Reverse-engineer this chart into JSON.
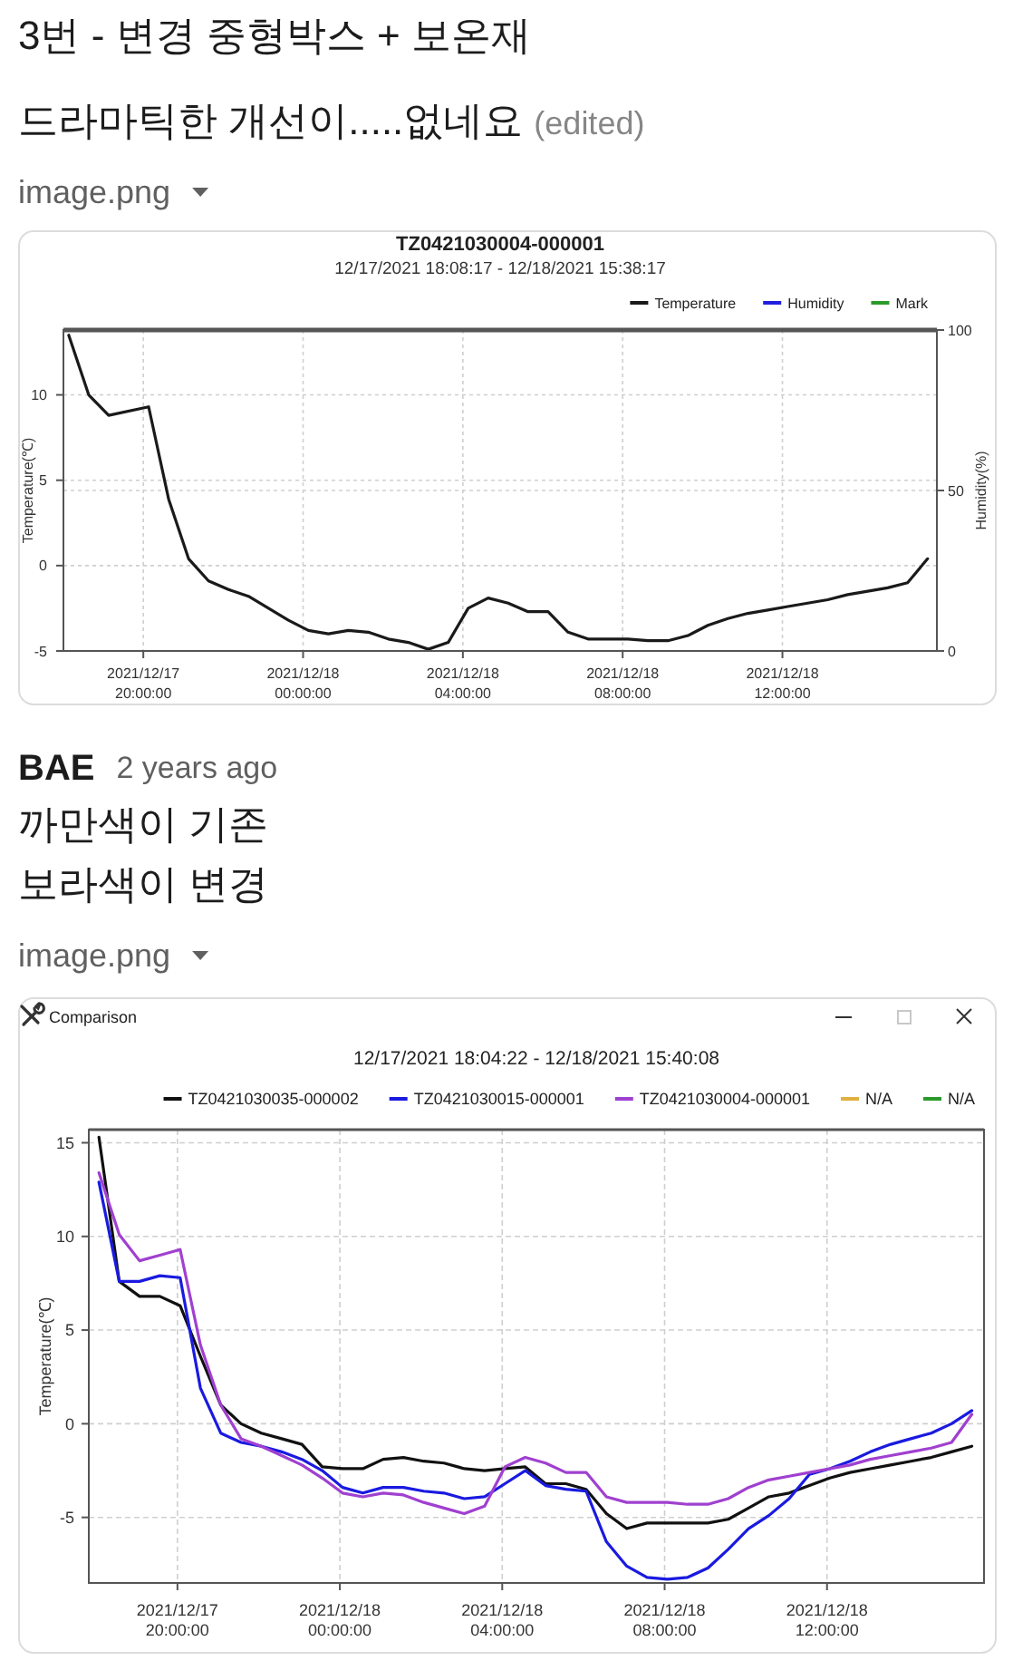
{
  "chart_data": [
    {
      "type": "line",
      "title": "TZ0421030004-000001",
      "subtitle": "12/17/2021 18:08:17 - 12/18/2021 15:38:17",
      "ylabel": "Temperature(℃)",
      "y2label": "Humidity(%)",
      "annotations": [
        "3번 - 변경 중형박스 + 보온재",
        "드라마틱한 개선이.....없네요",
        "(edited)",
        "image.png"
      ],
      "x": [
        "2021-12-17T18:08",
        "2021-12-17T18:38",
        "2021-12-17T19:08",
        "2021-12-17T20:08",
        "2021-12-17T20:38",
        "2021-12-17T21:08",
        "2021-12-17T21:38",
        "2021-12-17T22:08",
        "2021-12-17T22:38",
        "2021-12-17T23:08",
        "2021-12-17T23:38",
        "2021-12-18T00:08",
        "2021-12-18T00:38",
        "2021-12-18T01:08",
        "2021-12-18T01:38",
        "2021-12-18T02:08",
        "2021-12-18T02:38",
        "2021-12-18T03:08",
        "2021-12-18T03:38",
        "2021-12-18T04:08",
        "2021-12-18T04:38",
        "2021-12-18T05:08",
        "2021-12-18T05:38",
        "2021-12-18T06:08",
        "2021-12-18T06:38",
        "2021-12-18T07:08",
        "2021-12-18T07:38",
        "2021-12-18T08:08",
        "2021-12-18T08:38",
        "2021-12-18T09:08",
        "2021-12-18T09:38",
        "2021-12-18T10:08",
        "2021-12-18T10:38",
        "2021-12-18T11:08",
        "2021-12-18T11:38",
        "2021-12-18T12:08",
        "2021-12-18T12:38",
        "2021-12-18T13:08",
        "2021-12-18T13:38",
        "2021-12-18T14:08",
        "2021-12-18T14:38",
        "2021-12-18T15:08",
        "2021-12-18T15:38"
      ],
      "series": [
        {
          "name": "Temperature",
          "color": "#1a1a1a",
          "values": [
            13.5,
            10.0,
            8.8,
            9.3,
            3.9,
            0.4,
            -0.9,
            -1.4,
            -1.8,
            -2.5,
            -3.2,
            -3.8,
            -4.0,
            -3.8,
            -3.9,
            -4.3,
            -4.5,
            -4.9,
            -4.5,
            -2.5,
            -1.9,
            -2.2,
            -2.7,
            -2.7,
            -3.9,
            -4.3,
            -4.3,
            -4.3,
            -4.4,
            -4.4,
            -4.1,
            -3.5,
            -3.1,
            -2.8,
            -2.6,
            -2.4,
            -2.2,
            -2.0,
            -1.7,
            -1.5,
            -1.3,
            -1.0,
            0.4
          ]
        },
        {
          "name": "Humidity",
          "color": "#1f1fe0",
          "values": [
            null,
            null,
            null,
            null,
            null,
            null,
            null,
            null,
            null,
            null,
            null,
            null,
            null,
            null,
            null,
            null,
            null,
            null,
            null,
            null,
            null,
            null,
            null,
            null,
            null,
            null,
            null,
            null,
            null,
            null,
            null,
            null,
            null,
            null,
            null,
            null,
            null,
            null,
            null,
            null,
            null,
            null,
            null
          ]
        },
        {
          "name": "Mark",
          "color": "#2a9a2a",
          "values": [
            null,
            null,
            null,
            null,
            null,
            null,
            null,
            null,
            null,
            null,
            null,
            null,
            null,
            null,
            null,
            null,
            null,
            null,
            null,
            null,
            null,
            null,
            null,
            null,
            null,
            null,
            null,
            null,
            null,
            null,
            null,
            null,
            null,
            null,
            null,
            null,
            null,
            null,
            null,
            null,
            null,
            null,
            null
          ]
        }
      ],
      "xlim": [
        "2021-12-17T18:00",
        "2021-12-18T15:52"
      ],
      "xticks": [
        {
          "value": "2021-12-17T20:00",
          "label": "2021/12/17 20:00:00"
        },
        {
          "value": "2021-12-18T00:00",
          "label": "2021/12/18 00:00:00"
        },
        {
          "value": "2021-12-18T04:00",
          "label": "2021/12/18 04:00:00"
        },
        {
          "value": "2021-12-18T08:00",
          "label": "2021/12/18 08:00:00"
        },
        {
          "value": "2021-12-18T12:00",
          "label": "2021/12/18 12:00:00"
        }
      ],
      "ylim": [
        -5,
        13.8
      ],
      "yticks": [
        -5,
        0,
        5,
        10
      ],
      "y2lim": [
        0,
        100
      ],
      "y2ticks": [
        0,
        50,
        100
      ],
      "grid": true,
      "legend": "top right"
    },
    {
      "type": "line",
      "title": "12/17/2021 18:04:22 - 12/18/2021 15:40:08",
      "ylabel": "Temperature(℃)",
      "annotations": [
        "BAE",
        "2 years ago",
        "까만색이 기존",
        "보라색이 변경",
        "image.png",
        "Comparison"
      ],
      "x": [
        "2021-12-17T18:04",
        "2021-12-17T18:34",
        "2021-12-17T19:04",
        "2021-12-17T19:34",
        "2021-12-17T20:04",
        "2021-12-17T20:34",
        "2021-12-17T21:04",
        "2021-12-17T21:34",
        "2021-12-17T22:04",
        "2021-12-17T22:34",
        "2021-12-17T23:04",
        "2021-12-17T23:34",
        "2021-12-18T00:04",
        "2021-12-18T00:34",
        "2021-12-18T01:04",
        "2021-12-18T01:34",
        "2021-12-18T02:04",
        "2021-12-18T02:34",
        "2021-12-18T03:04",
        "2021-12-18T03:34",
        "2021-12-18T04:04",
        "2021-12-18T04:34",
        "2021-12-18T05:04",
        "2021-12-18T05:34",
        "2021-12-18T06:04",
        "2021-12-18T06:34",
        "2021-12-18T07:04",
        "2021-12-18T07:34",
        "2021-12-18T08:04",
        "2021-12-18T08:34",
        "2021-12-18T09:04",
        "2021-12-18T09:34",
        "2021-12-18T10:04",
        "2021-12-18T10:34",
        "2021-12-18T11:04",
        "2021-12-18T11:34",
        "2021-12-18T12:04",
        "2021-12-18T12:34",
        "2021-12-18T13:04",
        "2021-12-18T13:34",
        "2021-12-18T14:04",
        "2021-12-18T14:34",
        "2021-12-18T15:04",
        "2021-12-18T15:34"
      ],
      "series": [
        {
          "name": "TZ0421030035-000002",
          "color": "#111111",
          "values": [
            15.3,
            7.6,
            6.8,
            6.8,
            6.3,
            3.6,
            1.0,
            0.0,
            -0.5,
            -0.8,
            -1.1,
            -2.3,
            -2.4,
            -2.4,
            -1.9,
            -1.8,
            -2.0,
            -2.1,
            -2.4,
            -2.5,
            -2.4,
            -2.3,
            -3.2,
            -3.2,
            -3.5,
            -4.8,
            -5.6,
            -5.3,
            -5.3,
            -5.3,
            -5.3,
            -5.1,
            -4.5,
            -3.9,
            -3.7,
            -3.3,
            -2.9,
            -2.6,
            -2.4,
            -2.2,
            -2.0,
            -1.8,
            -1.5,
            -1.2
          ]
        },
        {
          "name": "TZ0421030015-000001",
          "color": "#1a1ae0",
          "values": [
            12.9,
            7.6,
            7.6,
            7.9,
            7.8,
            1.9,
            -0.5,
            -1.0,
            -1.2,
            -1.5,
            -1.9,
            -2.5,
            -3.4,
            -3.7,
            -3.4,
            -3.4,
            -3.6,
            -3.7,
            -4.0,
            -3.9,
            -3.2,
            -2.5,
            -3.3,
            -3.5,
            -3.6,
            -6.3,
            -7.6,
            -8.2,
            -8.3,
            -8.2,
            -7.7,
            -6.7,
            -5.6,
            -4.9,
            -4.0,
            -2.7,
            -2.4,
            -2.0,
            -1.5,
            -1.1,
            -0.8,
            -0.5,
            0.0,
            0.7
          ]
        },
        {
          "name": "TZ0421030004-000001",
          "color": "#a040d0",
          "values": [
            13.4,
            10.1,
            8.7,
            9.0,
            9.3,
            4.2,
            1.0,
            -0.8,
            -1.2,
            -1.7,
            -2.2,
            -2.9,
            -3.7,
            -3.9,
            -3.7,
            -3.8,
            -4.2,
            -4.5,
            -4.8,
            -4.4,
            -2.3,
            -1.8,
            -2.1,
            -2.6,
            -2.6,
            -3.9,
            -4.2,
            -4.2,
            -4.2,
            -4.3,
            -4.3,
            -4.0,
            -3.4,
            -3.0,
            -2.8,
            -2.6,
            -2.4,
            -2.2,
            -1.9,
            -1.7,
            -1.5,
            -1.3,
            -1.0,
            0.5
          ]
        },
        {
          "name": "N/A",
          "color": "#e0b040",
          "values": [
            null,
            null,
            null,
            null,
            null,
            null,
            null,
            null,
            null,
            null,
            null,
            null,
            null,
            null,
            null,
            null,
            null,
            null,
            null,
            null,
            null,
            null,
            null,
            null,
            null,
            null,
            null,
            null,
            null,
            null,
            null,
            null,
            null,
            null,
            null,
            null,
            null,
            null,
            null,
            null,
            null,
            null,
            null,
            null
          ]
        },
        {
          "name": "N/A",
          "color": "#2a9a2a",
          "values": [
            null,
            null,
            null,
            null,
            null,
            null,
            null,
            null,
            null,
            null,
            null,
            null,
            null,
            null,
            null,
            null,
            null,
            null,
            null,
            null,
            null,
            null,
            null,
            null,
            null,
            null,
            null,
            null,
            null,
            null,
            null,
            null,
            null,
            null,
            null,
            null,
            null,
            null,
            null,
            null,
            null,
            null,
            null,
            null
          ]
        }
      ],
      "xlim": [
        "2021-12-17T17:49",
        "2021-12-18T15:52"
      ],
      "xticks": [
        {
          "value": "2021-12-17T20:00",
          "label": "2021/12/17 20:00:00"
        },
        {
          "value": "2021-12-18T00:00",
          "label": "2021/12/18 00:00:00"
        },
        {
          "value": "2021-12-18T04:00",
          "label": "2021/12/18 04:00:00"
        },
        {
          "value": "2021-12-18T08:00",
          "label": "2021/12/18 08:00:00"
        },
        {
          "value": "2021-12-18T12:00",
          "label": "2021/12/18 12:00:00"
        }
      ],
      "ylim": [
        -8.5,
        15.7
      ],
      "yticks": [
        -5,
        0,
        5,
        10,
        15
      ],
      "grid": true,
      "legend": "top right"
    }
  ]
}
